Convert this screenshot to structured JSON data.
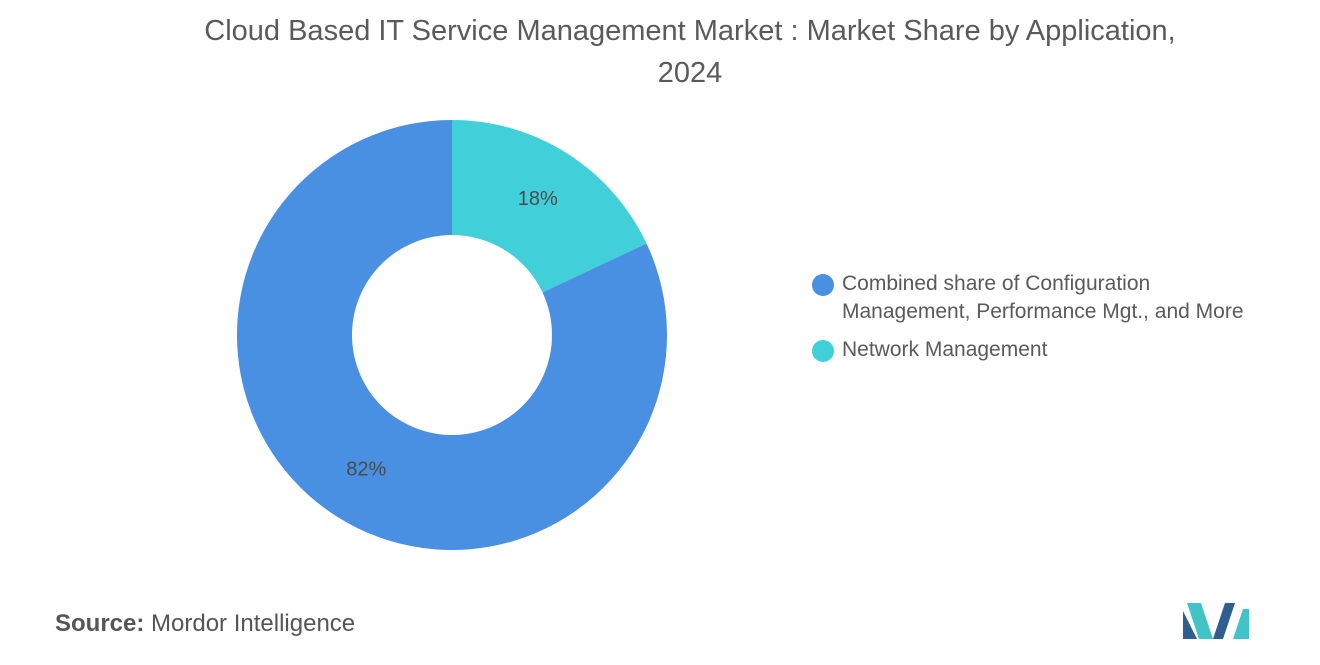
{
  "title": {
    "line1": "Cloud Based IT Service Management Market : Market Share by Application,",
    "line2": "2024"
  },
  "chart_data": {
    "type": "pie",
    "donut": true,
    "title": "Cloud Based IT Service Management Market : Market Share by Application, 2024",
    "slices": [
      {
        "name": "Network Management",
        "value": 18,
        "label": "18%",
        "color": "#41d0d9"
      },
      {
        "name": "Combined share of Configuration Management, Performance Mgt., and More",
        "value": 82,
        "label": "82%",
        "color": "#4a90e2"
      }
    ],
    "legend_position": "right"
  },
  "legend": {
    "items": [
      {
        "label": "Combined share of Configuration Management, Performance Mgt., and More",
        "color": "#4a90e2"
      },
      {
        "label": "Network Management",
        "color": "#41d0d9"
      }
    ]
  },
  "source": {
    "key": "Source:",
    "value": "Mordor Intelligence"
  },
  "logo": {
    "icon": "mordor-intelligence-logo-icon",
    "colors": [
      "#2f5f8f",
      "#41c3c8"
    ]
  }
}
